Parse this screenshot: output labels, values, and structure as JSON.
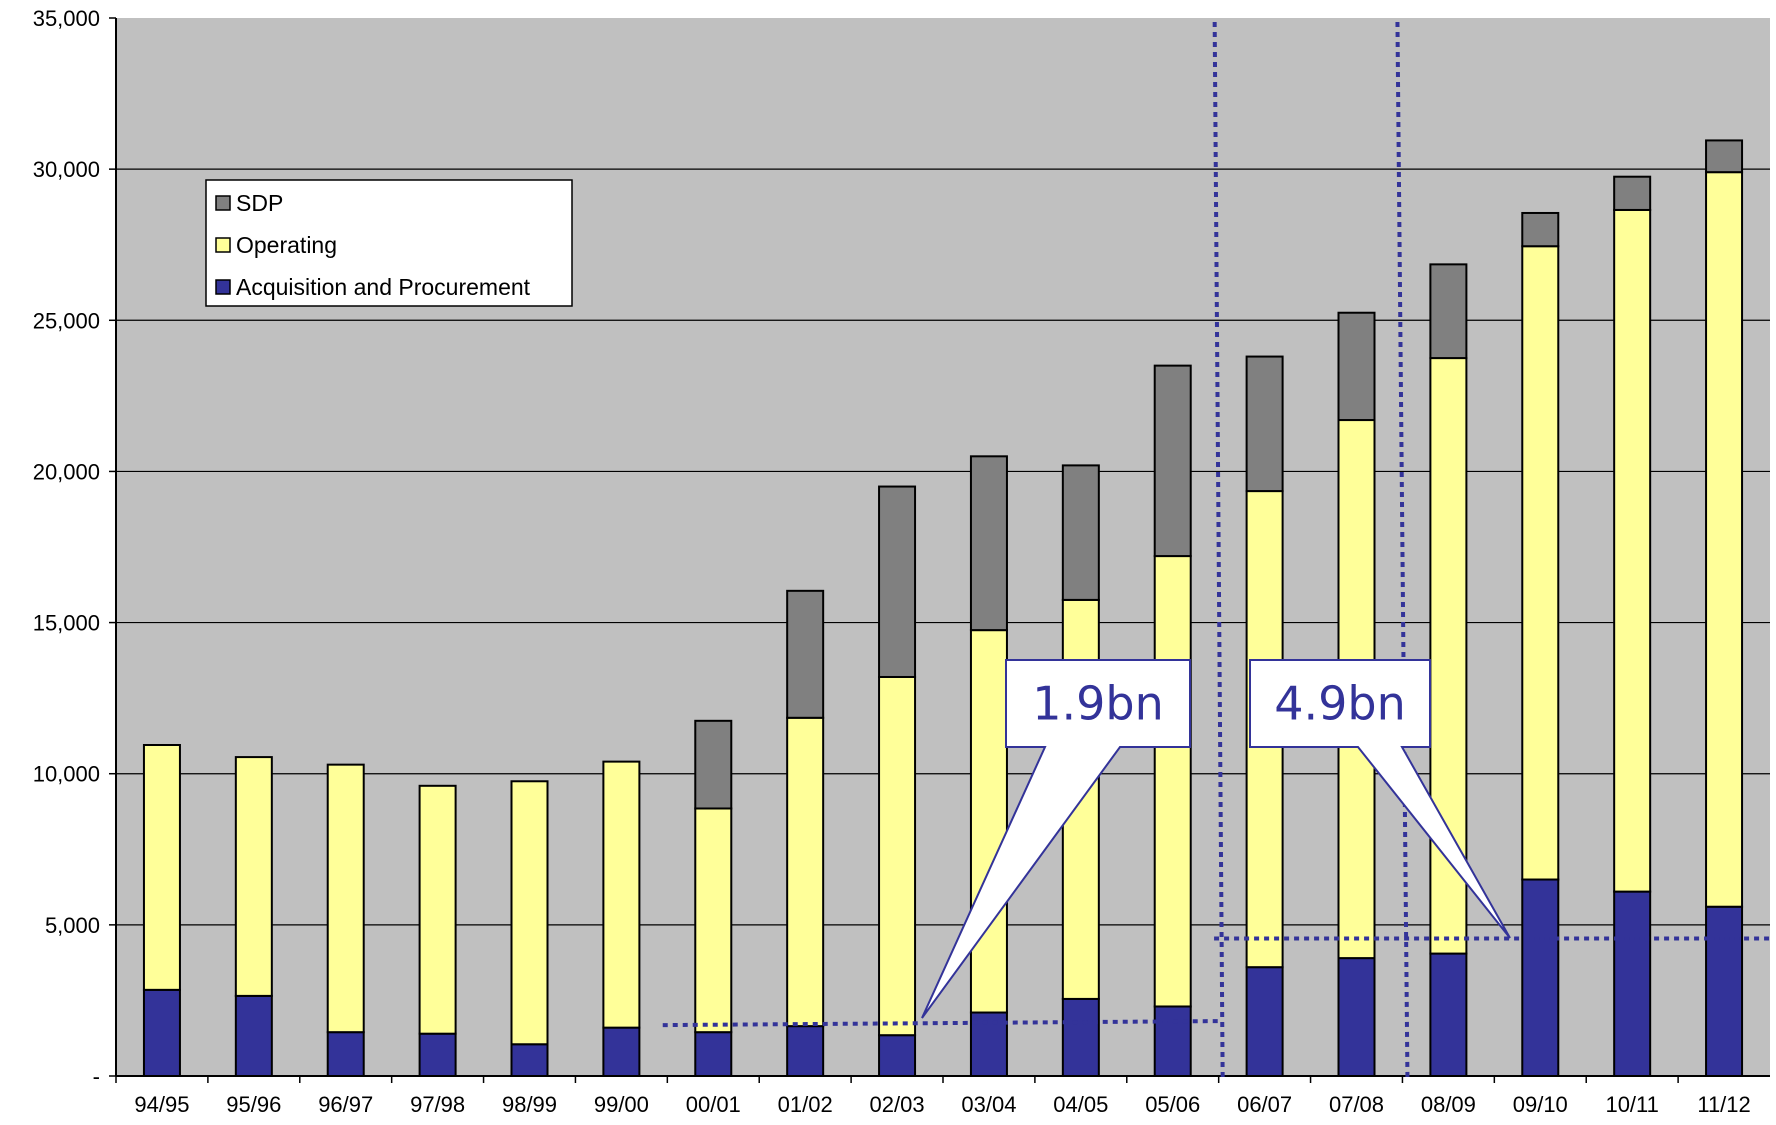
{
  "chart_data": {
    "type": "bar",
    "stacked": true,
    "categories": [
      "94/95",
      "95/96",
      "96/97",
      "97/98",
      "98/99",
      "99/00",
      "00/01",
      "01/02",
      "02/03",
      "03/04",
      "04/05",
      "05/06",
      "06/07",
      "07/08",
      "08/09",
      "09/10",
      "10/11",
      "11/12"
    ],
    "series": [
      {
        "name": "Acquisition and Procurement",
        "color": "#333399",
        "values": [
          2850,
          2650,
          1450,
          1400,
          1050,
          1600,
          1450,
          1650,
          1350,
          2100,
          2550,
          2300,
          3600,
          3900,
          4050,
          6500,
          6100,
          5600
        ]
      },
      {
        "name": "Operating",
        "color": "#ffff99",
        "values": [
          8100,
          7900,
          8850,
          8200,
          8700,
          8800,
          7400,
          10200,
          11850,
          12650,
          13200,
          14900,
          15750,
          17800,
          19700,
          20950,
          22550,
          24300
        ]
      },
      {
        "name": "SDP",
        "color": "#808080",
        "values": [
          0,
          0,
          0,
          0,
          0,
          0,
          2900,
          4200,
          6300,
          5750,
          4450,
          6300,
          4450,
          3550,
          3100,
          1100,
          1100,
          1050
        ]
      }
    ],
    "ylim": [
      0,
      35000
    ],
    "yticks": [
      "-",
      "5,000",
      "10,000",
      "15,000",
      "20,000",
      "25,000",
      "30,000",
      "35,000"
    ],
    "grid": true,
    "legend_position": "top-left",
    "legend_order": [
      "SDP",
      "Operating",
      "Acquisition and Procurement"
    ],
    "annotations": [
      {
        "text": "1.9bn",
        "level": 1750,
        "from_category": "00/01",
        "to_category": "05/06"
      },
      {
        "text": "4.9bn",
        "level": 4550,
        "from_category": "06/07",
        "to_category": "11/12"
      }
    ],
    "period_dividers_between": [
      [
        "05/06",
        "06/07"
      ],
      [
        "07/08",
        "08/09"
      ]
    ]
  }
}
